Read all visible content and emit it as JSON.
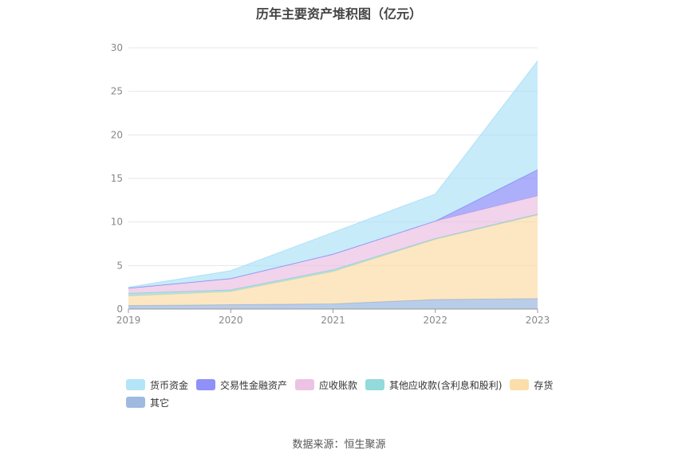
{
  "chart_data": {
    "type": "area",
    "stacked": true,
    "title": "历年主要资产堆积图（亿元）",
    "x": [
      "2019",
      "2020",
      "2021",
      "2022",
      "2023"
    ],
    "ylim": [
      0,
      30
    ],
    "yticks": [
      0,
      5,
      10,
      15,
      20,
      25,
      30
    ],
    "grid": true,
    "legend_position": "bottom",
    "series": [
      {
        "name": "其它",
        "color": "#8eaedc",
        "values": [
          0.4,
          0.5,
          0.6,
          1.1,
          1.2
        ]
      },
      {
        "name": "存货",
        "color": "#fcd89c",
        "values": [
          1.1,
          1.5,
          3.7,
          6.9,
          9.6
        ]
      },
      {
        "name": "其他应收款(含利息和股利)",
        "color": "#80d4d6",
        "values": [
          0.3,
          0.2,
          0.2,
          0.1,
          0.1
        ]
      },
      {
        "name": "应收账款",
        "color": "#e9b8de",
        "values": [
          0.6,
          1.3,
          1.8,
          2.0,
          2.1
        ]
      },
      {
        "name": "交易性金融资产",
        "color": "#7b7ef7",
        "values": [
          0.0,
          0.0,
          0.0,
          0.0,
          3.0
        ]
      },
      {
        "name": "货币资金",
        "color": "#a7dff7",
        "values": [
          0.1,
          0.9,
          2.5,
          3.1,
          12.5
        ]
      }
    ],
    "legend_order": [
      "货币资金",
      "交易性金融资产",
      "应收账款",
      "其他应收款(含利息和股利)",
      "存货",
      "其它"
    ]
  },
  "source": "数据来源：恒生聚源"
}
